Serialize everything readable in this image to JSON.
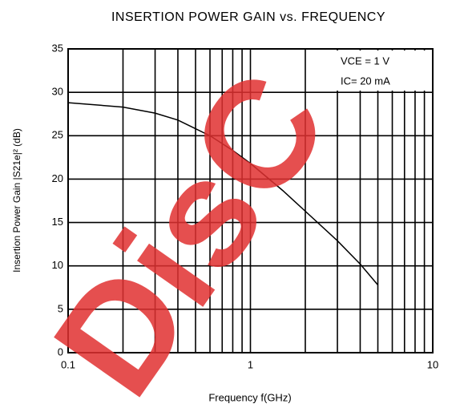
{
  "chart_data": {
    "type": "line",
    "title": "INSERTION POWER GAIN vs. FREQUENCY",
    "x_label": "Frequency  f(GHz)",
    "y_label": "Insertion Power Gain  |S21e|² (dB)",
    "annotations": [
      "VCE = 1 V",
      "IC= 20 mA"
    ],
    "watermark": "DisC",
    "x": [
      0.1,
      0.2,
      0.3,
      0.4,
      0.5,
      0.6,
      0.8,
      1,
      1.5,
      2,
      3,
      4,
      5
    ],
    "series": [
      {
        "name": "|S21e|²",
        "color": "#000000",
        "values": [
          28.8,
          28.3,
          27.6,
          26.8,
          25.8,
          25,
          23.3,
          21.8,
          18.7,
          16.3,
          12.9,
          10.2,
          7.8
        ]
      }
    ],
    "xscale": "log",
    "xlim": [
      0.1,
      10
    ],
    "xticks": [
      0.1,
      1,
      10
    ],
    "ylim": [
      0,
      35
    ],
    "yticks": [
      0,
      5,
      10,
      15,
      20,
      25,
      30,
      35
    ],
    "grid": true
  }
}
